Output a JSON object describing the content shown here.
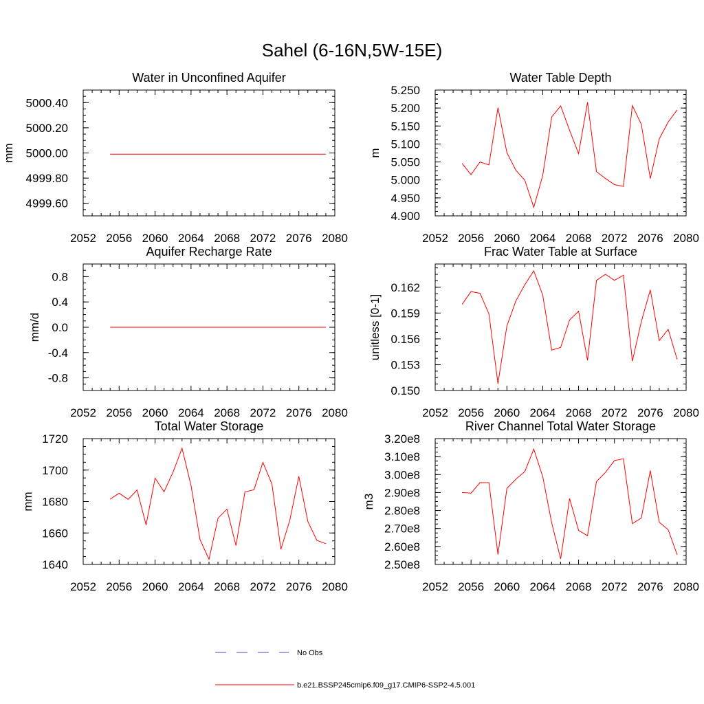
{
  "figure_title": "Sahel (6-16N,5W-15E)",
  "legend": {
    "entries": [
      {
        "label": "No Obs",
        "color": "#4b4bc8",
        "style": "dashed"
      },
      {
        "label": "b.e21.BSSP245cmip6.f09_g17.CMIP6-SSP2-4.5.001",
        "color": "#ff0000",
        "style": "solid"
      }
    ]
  },
  "chart_data": [
    {
      "type": "line",
      "title": "Water in Unconfined Aquifer",
      "xlabel": "",
      "ylabel": "mm",
      "xlim": [
        2052,
        2080
      ],
      "ylim": [
        4999.5,
        5000.5
      ],
      "x_ticks": [
        2052,
        2056,
        2060,
        2064,
        2068,
        2072,
        2076,
        2080
      ],
      "y_ticks": [
        4999.6,
        4999.8,
        5000.0,
        5000.2,
        5000.4
      ],
      "y_tick_labels": [
        "4999.60",
        "4999.80",
        "5000.00",
        "5000.20",
        "5000.40"
      ],
      "series": [
        {
          "color": "#ff0000",
          "x": [
            2055,
            2056,
            2057,
            2058,
            2059,
            2060,
            2061,
            2062,
            2063,
            2064,
            2065,
            2066,
            2067,
            2068,
            2069,
            2070,
            2071,
            2072,
            2073,
            2074,
            2075,
            2076,
            2077,
            2078,
            2079
          ],
          "values": [
            4999.99,
            4999.99,
            4999.99,
            4999.99,
            4999.99,
            4999.99,
            4999.99,
            4999.99,
            4999.99,
            4999.99,
            4999.99,
            4999.99,
            4999.99,
            4999.99,
            4999.99,
            4999.99,
            4999.99,
            4999.99,
            4999.99,
            4999.99,
            4999.99,
            4999.99,
            4999.99,
            4999.99,
            4999.99
          ]
        }
      ]
    },
    {
      "type": "line",
      "title": "Water Table Depth",
      "xlabel": "",
      "ylabel": "m",
      "xlim": [
        2052,
        2080
      ],
      "ylim": [
        4.9,
        5.25
      ],
      "x_ticks": [
        2052,
        2056,
        2060,
        2064,
        2068,
        2072,
        2076,
        2080
      ],
      "y_ticks": [
        4.9,
        4.95,
        5.0,
        5.05,
        5.1,
        5.15,
        5.2,
        5.25
      ],
      "y_tick_labels": [
        "4.900",
        "4.950",
        "5.000",
        "5.050",
        "5.100",
        "5.150",
        "5.200",
        "5.250"
      ],
      "series": [
        {
          "color": "#ff0000",
          "x": [
            2055,
            2056,
            2057,
            2058,
            2059,
            2060,
            2061,
            2062,
            2063,
            2064,
            2065,
            2066,
            2067,
            2068,
            2069,
            2070,
            2071,
            2072,
            2073,
            2074,
            2075,
            2076,
            2077,
            2078,
            2079
          ],
          "values": [
            5.046,
            5.015,
            5.05,
            5.042,
            5.201,
            5.076,
            5.027,
            4.999,
            4.924,
            5.012,
            5.175,
            5.206,
            5.138,
            5.073,
            5.216,
            5.023,
            5.004,
            4.987,
            4.982,
            5.207,
            5.155,
            5.004,
            5.114,
            5.161,
            5.195
          ]
        }
      ]
    },
    {
      "type": "line",
      "title": "Aquifer Recharge Rate",
      "xlabel": "",
      "ylabel": "mm/d",
      "xlim": [
        2052,
        2080
      ],
      "ylim": [
        -1.0,
        1.0
      ],
      "x_ticks": [
        2052,
        2056,
        2060,
        2064,
        2068,
        2072,
        2076,
        2080
      ],
      "y_ticks": [
        -0.8,
        -0.4,
        0.0,
        0.4,
        0.8
      ],
      "y_tick_labels": [
        "-0.8",
        "-0.4",
        "0.0",
        "0.4",
        "0.8"
      ],
      "series": [
        {
          "color": "#ff0000",
          "x": [
            2055,
            2056,
            2057,
            2058,
            2059,
            2060,
            2061,
            2062,
            2063,
            2064,
            2065,
            2066,
            2067,
            2068,
            2069,
            2070,
            2071,
            2072,
            2073,
            2074,
            2075,
            2076,
            2077,
            2078,
            2079
          ],
          "values": [
            0,
            0,
            0,
            0,
            0,
            0,
            0,
            0,
            0,
            0,
            0,
            0,
            0,
            0,
            0,
            0,
            0,
            0,
            0,
            0,
            0,
            0,
            0,
            0,
            0
          ]
        }
      ]
    },
    {
      "type": "line",
      "title": "Frac Water Table at Surface",
      "xlabel": "",
      "ylabel": "unitless [0-1]",
      "xlim": [
        2052,
        2080
      ],
      "ylim": [
        0.15,
        0.1647
      ],
      "x_ticks": [
        2052,
        2056,
        2060,
        2064,
        2068,
        2072,
        2076,
        2080
      ],
      "y_ticks": [
        0.15,
        0.153,
        0.156,
        0.159,
        0.162
      ],
      "y_tick_labels": [
        "0.150",
        "0.153",
        "0.156",
        "0.159",
        "0.162"
      ],
      "series": [
        {
          "color": "#ff0000",
          "x": [
            2055,
            2056,
            2057,
            2058,
            2059,
            2060,
            2061,
            2062,
            2063,
            2064,
            2065,
            2066,
            2067,
            2068,
            2069,
            2070,
            2071,
            2072,
            2073,
            2074,
            2075,
            2076,
            2077,
            2078,
            2079
          ],
          "values": [
            0.16,
            0.1615,
            0.1613,
            0.1589,
            0.1508,
            0.1575,
            0.1604,
            0.1623,
            0.1639,
            0.1611,
            0.1547,
            0.155,
            0.1582,
            0.1592,
            0.1535,
            0.1628,
            0.1635,
            0.1628,
            0.1634,
            0.1534,
            0.158,
            0.1617,
            0.1558,
            0.1571,
            0.1536
          ]
        }
      ]
    },
    {
      "type": "line",
      "title": "Total Water Storage",
      "xlabel": "",
      "ylabel": "mm",
      "xlim": [
        2052,
        2080
      ],
      "ylim": [
        1640,
        1720
      ],
      "x_ticks": [
        2052,
        2056,
        2060,
        2064,
        2068,
        2072,
        2076,
        2080
      ],
      "y_ticks": [
        1640,
        1660,
        1680,
        1700,
        1720
      ],
      "y_tick_labels": [
        "1640",
        "1660",
        "1680",
        "1700",
        "1720"
      ],
      "series": [
        {
          "color": "#ff0000",
          "x": [
            2055,
            2056,
            2057,
            2058,
            2059,
            2060,
            2061,
            2062,
            2063,
            2064,
            2065,
            2066,
            2067,
            2068,
            2069,
            2070,
            2071,
            2072,
            2073,
            2074,
            2075,
            2076,
            2077,
            2078,
            2079
          ],
          "values": [
            1681.5,
            1685.3,
            1681.4,
            1687.3,
            1665.1,
            1694.9,
            1686.2,
            1698.7,
            1713.9,
            1690.1,
            1655.9,
            1643.3,
            1669.4,
            1675.1,
            1652.0,
            1686.1,
            1687.5,
            1704.9,
            1691.2,
            1649.6,
            1668.2,
            1696.0,
            1667.3,
            1655.3,
            1653.2
          ]
        }
      ]
    },
    {
      "type": "line",
      "title": "River Channel Total Water Storage",
      "xlabel": "",
      "ylabel": "m3",
      "xlim": [
        2052,
        2080
      ],
      "ylim": [
        250000000,
        320000000
      ],
      "x_ticks": [
        2052,
        2056,
        2060,
        2064,
        2068,
        2072,
        2076,
        2080
      ],
      "y_ticks": [
        250000000,
        260000000,
        270000000,
        280000000,
        290000000,
        300000000,
        310000000,
        320000000
      ],
      "y_tick_labels": [
        "2.50e8",
        "2.60e8",
        "2.70e8",
        "2.80e8",
        "2.90e8",
        "3.00e8",
        "3.10e8",
        "3.20e8"
      ],
      "series": [
        {
          "color": "#ff0000",
          "x": [
            2055,
            2056,
            2057,
            2058,
            2059,
            2060,
            2061,
            2062,
            2063,
            2064,
            2065,
            2066,
            2067,
            2068,
            2069,
            2070,
            2071,
            2072,
            2073,
            2074,
            2075,
            2076,
            2077,
            2078,
            2079
          ],
          "values": [
            290000000,
            289700000,
            295500000,
            295500000,
            255500000,
            292300000,
            297400000,
            301700000,
            314200000,
            298900000,
            273100000,
            253100000,
            286700000,
            268900000,
            266000000,
            296100000,
            301200000,
            307800000,
            308800000,
            272700000,
            275800000,
            302200000,
            273500000,
            269300000,
            255400000
          ]
        }
      ]
    }
  ]
}
